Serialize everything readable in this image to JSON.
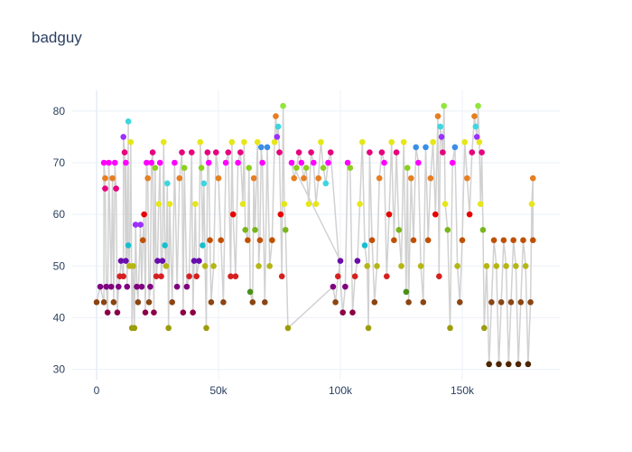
{
  "chart_data": {
    "type": "scatter",
    "mode": "lines+markers",
    "title": "badguy",
    "xlabel": "",
    "ylabel": "",
    "xlim": [
      -10000,
      190000
    ],
    "ylim": [
      28,
      84
    ],
    "x_ticks": [
      0,
      50000,
      100000,
      150000
    ],
    "x_tick_labels": [
      "0",
      "50k",
      "100k",
      "150k"
    ],
    "y_ticks": [
      30,
      40,
      50,
      60,
      70,
      80
    ],
    "y_tick_labels": [
      "30",
      "40",
      "50",
      "60",
      "70",
      "80"
    ],
    "grid": true,
    "line_color": "#cccccc",
    "background": "#ffffff",
    "points": [
      {
        "x": 0,
        "y": 43,
        "color": "#8b4513"
      },
      {
        "x": 1500,
        "y": 46,
        "color": "#800080"
      },
      {
        "x": 3000,
        "y": 43,
        "color": "#8b4513"
      },
      {
        "x": 3000,
        "y": 70,
        "color": "#ff00ff"
      },
      {
        "x": 3500,
        "y": 67,
        "color": "#e67e22"
      },
      {
        "x": 3500,
        "y": 65,
        "color": "#e6007e"
      },
      {
        "x": 4000,
        "y": 46,
        "color": "#800080"
      },
      {
        "x": 4500,
        "y": 41,
        "color": "#8b0045"
      },
      {
        "x": 5000,
        "y": 70,
        "color": "#ff00ff"
      },
      {
        "x": 6000,
        "y": 46,
        "color": "#800080"
      },
      {
        "x": 6500,
        "y": 67,
        "color": "#e67e22"
      },
      {
        "x": 7000,
        "y": 43,
        "color": "#8b4513"
      },
      {
        "x": 7500,
        "y": 70,
        "color": "#ff00ff"
      },
      {
        "x": 8000,
        "y": 65,
        "color": "#e6007e"
      },
      {
        "x": 8500,
        "y": 41,
        "color": "#8b0045"
      },
      {
        "x": 9000,
        "y": 46,
        "color": "#800080"
      },
      {
        "x": 9500,
        "y": 48,
        "color": "#d62020"
      },
      {
        "x": 10000,
        "y": 51,
        "color": "#6a0dad"
      },
      {
        "x": 11000,
        "y": 48,
        "color": "#d62020"
      },
      {
        "x": 11000,
        "y": 75,
        "color": "#9b30ff"
      },
      {
        "x": 11500,
        "y": 72,
        "color": "#e6007e"
      },
      {
        "x": 12000,
        "y": 51,
        "color": "#6a0dad"
      },
      {
        "x": 12000,
        "y": 70,
        "color": "#ff00ff"
      },
      {
        "x": 12500,
        "y": 46,
        "color": "#800080"
      },
      {
        "x": 13000,
        "y": 78,
        "color": "#3dd6e0"
      },
      {
        "x": 13000,
        "y": 54,
        "color": "#17becf"
      },
      {
        "x": 13500,
        "y": 50,
        "color": "#b5b514"
      },
      {
        "x": 14000,
        "y": 74,
        "color": "#e6e619"
      },
      {
        "x": 14500,
        "y": 38,
        "color": "#9c9c0a"
      },
      {
        "x": 15000,
        "y": 50,
        "color": "#b5b514"
      },
      {
        "x": 15500,
        "y": 38,
        "color": "#9c9c0a"
      },
      {
        "x": 16000,
        "y": 58,
        "color": "#9b30ff"
      },
      {
        "x": 16500,
        "y": 46,
        "color": "#800080"
      },
      {
        "x": 17000,
        "y": 43,
        "color": "#8b4513"
      },
      {
        "x": 18000,
        "y": 58,
        "color": "#9b30ff"
      },
      {
        "x": 18500,
        "y": 46,
        "color": "#800080"
      },
      {
        "x": 19000,
        "y": 55,
        "color": "#c05000"
      },
      {
        "x": 19500,
        "y": 60,
        "color": "#e60000"
      },
      {
        "x": 20000,
        "y": 41,
        "color": "#8b0045"
      },
      {
        "x": 20500,
        "y": 70,
        "color": "#ff00ff"
      },
      {
        "x": 21000,
        "y": 67,
        "color": "#e67e22"
      },
      {
        "x": 21500,
        "y": 43,
        "color": "#8b4513"
      },
      {
        "x": 22000,
        "y": 46,
        "color": "#800080"
      },
      {
        "x": 22500,
        "y": 70,
        "color": "#ff00ff"
      },
      {
        "x": 23000,
        "y": 72,
        "color": "#e6007e"
      },
      {
        "x": 23500,
        "y": 41,
        "color": "#8b0045"
      },
      {
        "x": 24000,
        "y": 69,
        "color": "#8ccf1e"
      },
      {
        "x": 24500,
        "y": 48,
        "color": "#d62020"
      },
      {
        "x": 25000,
        "y": 51,
        "color": "#6a0dad"
      },
      {
        "x": 25500,
        "y": 62,
        "color": "#e6e619"
      },
      {
        "x": 26000,
        "y": 70,
        "color": "#ff00ff"
      },
      {
        "x": 26500,
        "y": 48,
        "color": "#d62020"
      },
      {
        "x": 27000,
        "y": 51,
        "color": "#6a0dad"
      },
      {
        "x": 27500,
        "y": 74,
        "color": "#e6e619"
      },
      {
        "x": 28000,
        "y": 54,
        "color": "#17becf"
      },
      {
        "x": 28500,
        "y": 50,
        "color": "#b5b514"
      },
      {
        "x": 29000,
        "y": 66,
        "color": "#3dd6e0"
      },
      {
        "x": 29500,
        "y": 38,
        "color": "#9c9c0a"
      },
      {
        "x": 30000,
        "y": 62,
        "color": "#e6e619"
      },
      {
        "x": 31000,
        "y": 43,
        "color": "#8b4513"
      },
      {
        "x": 32000,
        "y": 70,
        "color": "#ff00ff"
      },
      {
        "x": 33000,
        "y": 46,
        "color": "#800080"
      },
      {
        "x": 34000,
        "y": 67,
        "color": "#e67e22"
      },
      {
        "x": 35000,
        "y": 72,
        "color": "#e6007e"
      },
      {
        "x": 35500,
        "y": 41,
        "color": "#8b0045"
      },
      {
        "x": 36000,
        "y": 69,
        "color": "#8ccf1e"
      },
      {
        "x": 37000,
        "y": 46,
        "color": "#800080"
      },
      {
        "x": 38000,
        "y": 48,
        "color": "#d62020"
      },
      {
        "x": 39000,
        "y": 72,
        "color": "#e6007e"
      },
      {
        "x": 39500,
        "y": 41,
        "color": "#8b0045"
      },
      {
        "x": 40000,
        "y": 51,
        "color": "#6a0dad"
      },
      {
        "x": 40500,
        "y": 62,
        "color": "#e6e619"
      },
      {
        "x": 41000,
        "y": 48,
        "color": "#d62020"
      },
      {
        "x": 42000,
        "y": 51,
        "color": "#6a0dad"
      },
      {
        "x": 42500,
        "y": 74,
        "color": "#e6e619"
      },
      {
        "x": 43000,
        "y": 69,
        "color": "#8ccf1e"
      },
      {
        "x": 43500,
        "y": 54,
        "color": "#17becf"
      },
      {
        "x": 44000,
        "y": 66,
        "color": "#3dd6e0"
      },
      {
        "x": 44500,
        "y": 50,
        "color": "#b5b514"
      },
      {
        "x": 45000,
        "y": 38,
        "color": "#9c9c0a"
      },
      {
        "x": 45500,
        "y": 72,
        "color": "#e6007e"
      },
      {
        "x": 46000,
        "y": 70,
        "color": "#ff00ff"
      },
      {
        "x": 46500,
        "y": 55,
        "color": "#c05000"
      },
      {
        "x": 47000,
        "y": 43,
        "color": "#8b4513"
      },
      {
        "x": 48000,
        "y": 50,
        "color": "#b5b514"
      },
      {
        "x": 49000,
        "y": 72,
        "color": "#e6007e"
      },
      {
        "x": 50000,
        "y": 67,
        "color": "#e67e22"
      },
      {
        "x": 51000,
        "y": 55,
        "color": "#c05000"
      },
      {
        "x": 52000,
        "y": 43,
        "color": "#8b4513"
      },
      {
        "x": 53000,
        "y": 70,
        "color": "#ff00ff"
      },
      {
        "x": 54000,
        "y": 72,
        "color": "#e6007e"
      },
      {
        "x": 55000,
        "y": 48,
        "color": "#d62020"
      },
      {
        "x": 55500,
        "y": 74,
        "color": "#e6e619"
      },
      {
        "x": 56000,
        "y": 60,
        "color": "#e60000"
      },
      {
        "x": 57000,
        "y": 48,
        "color": "#d62020"
      },
      {
        "x": 58000,
        "y": 70,
        "color": "#ff00ff"
      },
      {
        "x": 59000,
        "y": 72,
        "color": "#e6007e"
      },
      {
        "x": 60000,
        "y": 62,
        "color": "#e6e619"
      },
      {
        "x": 60500,
        "y": 74,
        "color": "#e6e619"
      },
      {
        "x": 61000,
        "y": 57,
        "color": "#7ab51d"
      },
      {
        "x": 62000,
        "y": 55,
        "color": "#c05000"
      },
      {
        "x": 62500,
        "y": 69,
        "color": "#8ccf1e"
      },
      {
        "x": 63000,
        "y": 45,
        "color": "#4a8f1a"
      },
      {
        "x": 64000,
        "y": 43,
        "color": "#8b4513"
      },
      {
        "x": 64500,
        "y": 67,
        "color": "#e67e22"
      },
      {
        "x": 65000,
        "y": 57,
        "color": "#7ab51d"
      },
      {
        "x": 66000,
        "y": 74,
        "color": "#e6e619"
      },
      {
        "x": 66500,
        "y": 50,
        "color": "#b5b514"
      },
      {
        "x": 67000,
        "y": 55,
        "color": "#c05000"
      },
      {
        "x": 67500,
        "y": 73,
        "color": "#3a8ee6"
      },
      {
        "x": 68000,
        "y": 70,
        "color": "#ff00ff"
      },
      {
        "x": 69000,
        "y": 43,
        "color": "#8b4513"
      },
      {
        "x": 70000,
        "y": 73,
        "color": "#3a8ee6"
      },
      {
        "x": 71000,
        "y": 50,
        "color": "#b5b514"
      },
      {
        "x": 72000,
        "y": 55,
        "color": "#c05000"
      },
      {
        "x": 73000,
        "y": 74,
        "color": "#e6e619"
      },
      {
        "x": 73500,
        "y": 79,
        "color": "#e67e22"
      },
      {
        "x": 74000,
        "y": 75,
        "color": "#9b30ff"
      },
      {
        "x": 74500,
        "y": 77,
        "color": "#3dd6e0"
      },
      {
        "x": 75000,
        "y": 72,
        "color": "#e6007e"
      },
      {
        "x": 75500,
        "y": 60,
        "color": "#e60000"
      },
      {
        "x": 76000,
        "y": 48,
        "color": "#d62020"
      },
      {
        "x": 76500,
        "y": 81,
        "color": "#8fe63d"
      },
      {
        "x": 77000,
        "y": 62,
        "color": "#e6e619"
      },
      {
        "x": 77500,
        "y": 57,
        "color": "#7ab51d"
      },
      {
        "x": 78500,
        "y": 38,
        "color": "#9c9c0a"
      },
      {
        "x": 97000,
        "y": 46,
        "color": "#800080"
      },
      {
        "x": 98000,
        "y": 43,
        "color": "#8b4513"
      },
      {
        "x": 99000,
        "y": 48,
        "color": "#d62020"
      },
      {
        "x": 100000,
        "y": 51,
        "color": "#6a0dad"
      },
      {
        "x": 80000,
        "y": 70,
        "color": "#ff00ff"
      },
      {
        "x": 81000,
        "y": 67,
        "color": "#e67e22"
      },
      {
        "x": 82000,
        "y": 69,
        "color": "#8ccf1e"
      },
      {
        "x": 83000,
        "y": 72,
        "color": "#e6007e"
      },
      {
        "x": 84000,
        "y": 70,
        "color": "#ff00ff"
      },
      {
        "x": 85000,
        "y": 67,
        "color": "#e67e22"
      },
      {
        "x": 86000,
        "y": 69,
        "color": "#8ccf1e"
      },
      {
        "x": 87000,
        "y": 62,
        "color": "#e6e619"
      },
      {
        "x": 88000,
        "y": 72,
        "color": "#e6007e"
      },
      {
        "x": 89000,
        "y": 70,
        "color": "#ff00ff"
      },
      {
        "x": 90000,
        "y": 62,
        "color": "#e6e619"
      },
      {
        "x": 91000,
        "y": 67,
        "color": "#e67e22"
      },
      {
        "x": 92000,
        "y": 74,
        "color": "#e6e619"
      },
      {
        "x": 93000,
        "y": 69,
        "color": "#8ccf1e"
      },
      {
        "x": 94000,
        "y": 66,
        "color": "#3dd6e0"
      },
      {
        "x": 95000,
        "y": 70,
        "color": "#ff00ff"
      },
      {
        "x": 96000,
        "y": 72,
        "color": "#e6007e"
      },
      {
        "x": 101000,
        "y": 41,
        "color": "#8b0045"
      },
      {
        "x": 102000,
        "y": 46,
        "color": "#800080"
      },
      {
        "x": 103000,
        "y": 70,
        "color": "#ff00ff"
      },
      {
        "x": 104000,
        "y": 69,
        "color": "#8ccf1e"
      },
      {
        "x": 105000,
        "y": 41,
        "color": "#8b0045"
      },
      {
        "x": 106000,
        "y": 48,
        "color": "#d62020"
      },
      {
        "x": 107000,
        "y": 51,
        "color": "#6a0dad"
      },
      {
        "x": 108000,
        "y": 62,
        "color": "#e6e619"
      },
      {
        "x": 109000,
        "y": 74,
        "color": "#e6e619"
      },
      {
        "x": 110000,
        "y": 54,
        "color": "#17becf"
      },
      {
        "x": 111000,
        "y": 50,
        "color": "#b5b514"
      },
      {
        "x": 111500,
        "y": 38,
        "color": "#9c9c0a"
      },
      {
        "x": 112000,
        "y": 72,
        "color": "#e6007e"
      },
      {
        "x": 113000,
        "y": 55,
        "color": "#c05000"
      },
      {
        "x": 114000,
        "y": 43,
        "color": "#8b4513"
      },
      {
        "x": 115000,
        "y": 50,
        "color": "#b5b514"
      },
      {
        "x": 116000,
        "y": 67,
        "color": "#e67e22"
      },
      {
        "x": 117000,
        "y": 72,
        "color": "#e6007e"
      },
      {
        "x": 118000,
        "y": 70,
        "color": "#ff00ff"
      },
      {
        "x": 119000,
        "y": 48,
        "color": "#d62020"
      },
      {
        "x": 120000,
        "y": 60,
        "color": "#e60000"
      },
      {
        "x": 121000,
        "y": 74,
        "color": "#e6e619"
      },
      {
        "x": 122000,
        "y": 55,
        "color": "#c05000"
      },
      {
        "x": 123000,
        "y": 72,
        "color": "#e6007e"
      },
      {
        "x": 124000,
        "y": 57,
        "color": "#7ab51d"
      },
      {
        "x": 125000,
        "y": 50,
        "color": "#b5b514"
      },
      {
        "x": 126000,
        "y": 74,
        "color": "#e6e619"
      },
      {
        "x": 127000,
        "y": 45,
        "color": "#4a8f1a"
      },
      {
        "x": 127500,
        "y": 69,
        "color": "#8ccf1e"
      },
      {
        "x": 128000,
        "y": 43,
        "color": "#8b4513"
      },
      {
        "x": 129000,
        "y": 67,
        "color": "#e67e22"
      },
      {
        "x": 130000,
        "y": 55,
        "color": "#c05000"
      },
      {
        "x": 131000,
        "y": 73,
        "color": "#3a8ee6"
      },
      {
        "x": 132000,
        "y": 70,
        "color": "#ff00ff"
      },
      {
        "x": 133000,
        "y": 50,
        "color": "#b5b514"
      },
      {
        "x": 134000,
        "y": 43,
        "color": "#8b4513"
      },
      {
        "x": 135000,
        "y": 73,
        "color": "#3a8ee6"
      },
      {
        "x": 136000,
        "y": 55,
        "color": "#c05000"
      },
      {
        "x": 137000,
        "y": 67,
        "color": "#e67e22"
      },
      {
        "x": 138000,
        "y": 74,
        "color": "#e6e619"
      },
      {
        "x": 139000,
        "y": 60,
        "color": "#e60000"
      },
      {
        "x": 140000,
        "y": 79,
        "color": "#e67e22"
      },
      {
        "x": 140500,
        "y": 48,
        "color": "#d62020"
      },
      {
        "x": 141000,
        "y": 77,
        "color": "#3dd6e0"
      },
      {
        "x": 141500,
        "y": 75,
        "color": "#9b30ff"
      },
      {
        "x": 142000,
        "y": 72,
        "color": "#e6007e"
      },
      {
        "x": 142500,
        "y": 81,
        "color": "#8fe63d"
      },
      {
        "x": 143000,
        "y": 62,
        "color": "#e6e619"
      },
      {
        "x": 144000,
        "y": 57,
        "color": "#7ab51d"
      },
      {
        "x": 145000,
        "y": 38,
        "color": "#9c9c0a"
      },
      {
        "x": 146000,
        "y": 70,
        "color": "#ff00ff"
      },
      {
        "x": 147000,
        "y": 73,
        "color": "#3a8ee6"
      },
      {
        "x": 148000,
        "y": 50,
        "color": "#b5b514"
      },
      {
        "x": 149000,
        "y": 43,
        "color": "#8b4513"
      },
      {
        "x": 150000,
        "y": 55,
        "color": "#c05000"
      },
      {
        "x": 151000,
        "y": 74,
        "color": "#e6e619"
      },
      {
        "x": 152000,
        "y": 67,
        "color": "#e67e22"
      },
      {
        "x": 153000,
        "y": 60,
        "color": "#e60000"
      },
      {
        "x": 154000,
        "y": 72,
        "color": "#e6007e"
      },
      {
        "x": 155000,
        "y": 79,
        "color": "#e67e22"
      },
      {
        "x": 155500,
        "y": 77,
        "color": "#3dd6e0"
      },
      {
        "x": 156000,
        "y": 75,
        "color": "#9b30ff"
      },
      {
        "x": 156500,
        "y": 81,
        "color": "#8fe63d"
      },
      {
        "x": 157000,
        "y": 74,
        "color": "#e6e619"
      },
      {
        "x": 157500,
        "y": 62,
        "color": "#e6e619"
      },
      {
        "x": 158000,
        "y": 72,
        "color": "#e6007e"
      },
      {
        "x": 158500,
        "y": 57,
        "color": "#7ab51d"
      },
      {
        "x": 159000,
        "y": 38,
        "color": "#9c9c0a"
      },
      {
        "x": 160000,
        "y": 50,
        "color": "#b5b514"
      },
      {
        "x": 161000,
        "y": 31,
        "color": "#4d2600"
      },
      {
        "x": 162000,
        "y": 43,
        "color": "#8b4513"
      },
      {
        "x": 163000,
        "y": 55,
        "color": "#c05000"
      },
      {
        "x": 164000,
        "y": 50,
        "color": "#b5b514"
      },
      {
        "x": 165000,
        "y": 31,
        "color": "#4d2600"
      },
      {
        "x": 166000,
        "y": 43,
        "color": "#8b4513"
      },
      {
        "x": 167000,
        "y": 55,
        "color": "#c05000"
      },
      {
        "x": 168000,
        "y": 50,
        "color": "#b5b514"
      },
      {
        "x": 169000,
        "y": 31,
        "color": "#4d2600"
      },
      {
        "x": 170000,
        "y": 43,
        "color": "#8b4513"
      },
      {
        "x": 171000,
        "y": 55,
        "color": "#c05000"
      },
      {
        "x": 172000,
        "y": 50,
        "color": "#b5b514"
      },
      {
        "x": 173000,
        "y": 31,
        "color": "#4d2600"
      },
      {
        "x": 174000,
        "y": 43,
        "color": "#8b4513"
      },
      {
        "x": 175000,
        "y": 55,
        "color": "#c05000"
      },
      {
        "x": 176000,
        "y": 50,
        "color": "#b5b514"
      },
      {
        "x": 177000,
        "y": 31,
        "color": "#4d2600"
      },
      {
        "x": 178000,
        "y": 43,
        "color": "#8b4513"
      },
      {
        "x": 178500,
        "y": 62,
        "color": "#e6e619"
      },
      {
        "x": 179000,
        "y": 67,
        "color": "#e67e22"
      },
      {
        "x": 179000,
        "y": 55,
        "color": "#c05000"
      }
    ]
  }
}
